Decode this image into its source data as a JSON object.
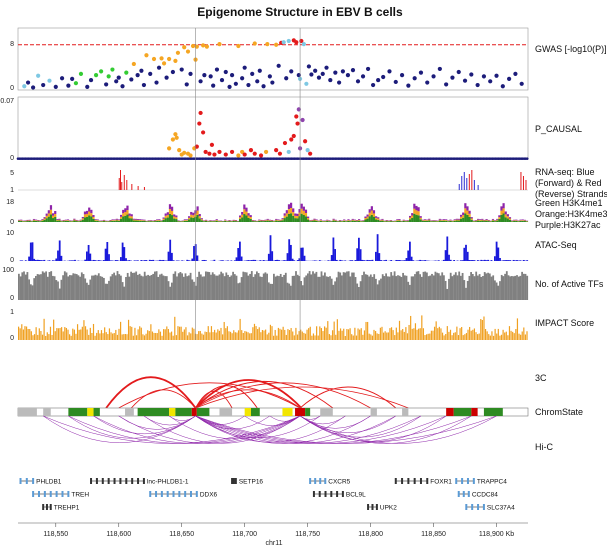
{
  "chart_data": {
    "type": "scatter",
    "title": "Epigenome Structure in EBV B cells",
    "xlabel": "chr11",
    "x_unit": "Kb",
    "xlim": [
      118520,
      118925
    ],
    "x_ticks": [
      "118,550",
      "118,600",
      "118,650",
      "118,700",
      "118,750",
      "118,800",
      "118,850",
      "118,900 Kb"
    ],
    "highlight_positions_kb": [
      118661,
      118744
    ],
    "tracks": {
      "gwas": {
        "label": "GWAS [-log10(P)]",
        "y_ticks": [
          "8",
          "0"
        ],
        "ylim": [
          0,
          10
        ],
        "threshold": 7.3,
        "points": [
          [
            118525,
            0.6,
            "#7ec8e3"
          ],
          [
            118528,
            1.2,
            "#1c1c7a"
          ],
          [
            118532,
            0.4,
            "#1c1c7a"
          ],
          [
            118536,
            2.3,
            "#7ec8e3"
          ],
          [
            118540,
            0.8,
            "#1c1c7a"
          ],
          [
            118545,
            1.5,
            "#7ec8e3"
          ],
          [
            118550,
            0.5,
            "#1c1c7a"
          ],
          [
            118555,
            1.9,
            "#1c1c7a"
          ],
          [
            118560,
            0.7,
            "#1c1c7a"
          ],
          [
            118563,
            1.8,
            "#1c1c7a"
          ],
          [
            118566,
            1.1,
            "#33cc33"
          ],
          [
            118570,
            2.6,
            "#33cc33"
          ],
          [
            118575,
            0.5,
            "#1c1c7a"
          ],
          [
            118578,
            1.6,
            "#1c1c7a"
          ],
          [
            118582,
            2.4,
            "#33cc33"
          ],
          [
            118586,
            3.0,
            "#33cc33"
          ],
          [
            118590,
            0.9,
            "#1c1c7a"
          ],
          [
            118592,
            2.2,
            "#33cc33"
          ],
          [
            118595,
            3.3,
            "#33cc33"
          ],
          [
            118598,
            1.4,
            "#1c1c7a"
          ],
          [
            118600,
            2.0,
            "#1c1c7a"
          ],
          [
            118603,
            0.6,
            "#1c1c7a"
          ],
          [
            118606,
            2.8,
            "#33cc33"
          ],
          [
            118610,
            1.7,
            "#1c1c7a"
          ],
          [
            118612,
            4.2,
            "#f5a623"
          ],
          [
            118615,
            2.4,
            "#1c1c7a"
          ],
          [
            118618,
            3.1,
            "#1c1c7a"
          ],
          [
            118620,
            0.8,
            "#1c1c7a"
          ],
          [
            118622,
            5.6,
            "#f5a623"
          ],
          [
            118625,
            2.6,
            "#1c1c7a"
          ],
          [
            118628,
            5.0,
            "#f5a623"
          ],
          [
            118630,
            1.2,
            "#1c1c7a"
          ],
          [
            118632,
            3.6,
            "#1c1c7a"
          ],
          [
            118634,
            5.1,
            "#f5a623"
          ],
          [
            118636,
            4.3,
            "#f5a623"
          ],
          [
            118638,
            2.0,
            "#1c1c7a"
          ],
          [
            118640,
            5.0,
            "#f5a623"
          ],
          [
            118643,
            2.9,
            "#1c1c7a"
          ],
          [
            118645,
            4.7,
            "#f5a623"
          ],
          [
            118647,
            6.0,
            "#f5a623"
          ],
          [
            118650,
            3.3,
            "#1c1c7a"
          ],
          [
            118652,
            6.9,
            "#f5a623"
          ],
          [
            118654,
            0.9,
            "#1c1c7a"
          ],
          [
            118655,
            6.2,
            "#f5a623"
          ],
          [
            118657,
            2.6,
            "#1c1c7a"
          ],
          [
            118659,
            7.1,
            "#f5a623"
          ],
          [
            118661,
            4.9,
            "#f5a623"
          ],
          [
            118662,
            7.0,
            "#f5a623"
          ],
          [
            118665,
            1.4,
            "#1c1c7a"
          ],
          [
            118667,
            7.2,
            "#f5a623"
          ],
          [
            118668,
            2.4,
            "#1c1c7a"
          ],
          [
            118670,
            7.0,
            "#f5a623"
          ],
          [
            118673,
            2.2,
            "#1c1c7a"
          ],
          [
            118675,
            0.7,
            "#1c1c7a"
          ],
          [
            118678,
            3.3,
            "#1c1c7a"
          ],
          [
            118680,
            7.4,
            "#f5a623"
          ],
          [
            118682,
            1.6,
            "#1c1c7a"
          ],
          [
            118685,
            2.9,
            "#1c1c7a"
          ],
          [
            118688,
            0.5,
            "#1c1c7a"
          ],
          [
            118690,
            2.4,
            "#1c1c7a"
          ],
          [
            118693,
            1.0,
            "#1c1c7a"
          ],
          [
            118695,
            7.1,
            "#f5a623"
          ],
          [
            118698,
            1.9,
            "#1c1c7a"
          ],
          [
            118700,
            3.6,
            "#1c1c7a"
          ],
          [
            118703,
            0.8,
            "#1c1c7a"
          ],
          [
            118706,
            2.6,
            "#1c1c7a"
          ],
          [
            118708,
            7.5,
            "#f5a623"
          ],
          [
            118710,
            1.4,
            "#1c1c7a"
          ],
          [
            118712,
            3.1,
            "#1c1c7a"
          ],
          [
            118715,
            0.6,
            "#1c1c7a"
          ],
          [
            118718,
            7.4,
            "#f5a623"
          ],
          [
            118720,
            2.2,
            "#1c1c7a"
          ],
          [
            118722,
            1.2,
            "#1c1c7a"
          ],
          [
            118725,
            7.3,
            "#f5a623"
          ],
          [
            118727,
            3.9,
            "#1c1c7a"
          ],
          [
            118729,
            7.6,
            "#e31a1c"
          ],
          [
            118731,
            7.7,
            "#7ec8e3"
          ],
          [
            118733,
            1.9,
            "#1c1c7a"
          ],
          [
            118735,
            7.9,
            "#7ec8e3"
          ],
          [
            118737,
            3.0,
            "#1c1c7a"
          ],
          [
            118739,
            8.0,
            "#e31a1c"
          ],
          [
            118741,
            7.7,
            "#e31a1c"
          ],
          [
            118743,
            2.4,
            "#1c1c7a"
          ],
          [
            118744,
            1.8,
            "#7ec8e3"
          ],
          [
            118745,
            7.9,
            "#e31a1c"
          ],
          [
            118747,
            7.4,
            "#7ec8e3"
          ],
          [
            118749,
            1.0,
            "#7ec8e3"
          ],
          [
            118751,
            3.8,
            "#1c1c7a"
          ],
          [
            118753,
            2.5,
            "#1c1c7a"
          ],
          [
            118756,
            3.1,
            "#1c1c7a"
          ],
          [
            118759,
            2.0,
            "#1c1c7a"
          ],
          [
            118762,
            2.6,
            "#1c1c7a"
          ],
          [
            118765,
            3.6,
            "#1c1c7a"
          ],
          [
            118768,
            1.6,
            "#1c1c7a"
          ],
          [
            118772,
            2.8,
            "#1c1c7a"
          ],
          [
            118775,
            1.2,
            "#1c1c7a"
          ],
          [
            118778,
            3.0,
            "#1c1c7a"
          ],
          [
            118782,
            2.4,
            "#1c1c7a"
          ],
          [
            118786,
            3.2,
            "#1c1c7a"
          ],
          [
            118790,
            1.4,
            "#1c1c7a"
          ],
          [
            118794,
            2.2,
            "#1c1c7a"
          ],
          [
            118798,
            3.4,
            "#1c1c7a"
          ],
          [
            118802,
            0.8,
            "#1c1c7a"
          ],
          [
            118806,
            1.6,
            "#1c1c7a"
          ],
          [
            118810,
            2.1,
            "#1c1c7a"
          ],
          [
            118815,
            3.0,
            "#1c1c7a"
          ],
          [
            118820,
            1.3,
            "#1c1c7a"
          ],
          [
            118825,
            2.4,
            "#1c1c7a"
          ],
          [
            118830,
            0.7,
            "#1c1c7a"
          ],
          [
            118835,
            1.9,
            "#1c1c7a"
          ],
          [
            118840,
            2.8,
            "#1c1c7a"
          ],
          [
            118845,
            1.2,
            "#1c1c7a"
          ],
          [
            118850,
            2.2,
            "#1c1c7a"
          ],
          [
            118855,
            3.4,
            "#1c1c7a"
          ],
          [
            118860,
            0.9,
            "#1c1c7a"
          ],
          [
            118865,
            2.0,
            "#1c1c7a"
          ],
          [
            118870,
            2.9,
            "#1c1c7a"
          ],
          [
            118875,
            1.5,
            "#1c1c7a"
          ],
          [
            118880,
            2.5,
            "#1c1c7a"
          ],
          [
            118885,
            0.8,
            "#1c1c7a"
          ],
          [
            118890,
            2.2,
            "#1c1c7a"
          ],
          [
            118895,
            1.4,
            "#1c1c7a"
          ],
          [
            118900,
            2.3,
            "#1c1c7a"
          ],
          [
            118905,
            0.6,
            "#1c1c7a"
          ],
          [
            118910,
            1.8,
            "#1c1c7a"
          ],
          [
            118915,
            2.6,
            "#1c1c7a"
          ],
          [
            118920,
            1.0,
            "#1c1c7a"
          ]
        ]
      },
      "pcausal": {
        "label": "P_CAUSAL",
        "y_ticks": [
          "0.07",
          "0"
        ],
        "ylim": [
          0,
          0.07
        ],
        "points": [
          [
            118640,
            0.012,
            "#f5a623"
          ],
          [
            118643,
            0.022,
            "#f5a623"
          ],
          [
            118645,
            0.028,
            "#f5a623"
          ],
          [
            118646,
            0.024,
            "#f5a623"
          ],
          [
            118648,
            0.01,
            "#f5a623"
          ],
          [
            118650,
            0.005,
            "#f5a623"
          ],
          [
            118652,
            0.007,
            "#f5a623"
          ],
          [
            118655,
            0.006,
            "#f5a623"
          ],
          [
            118657,
            0.004,
            "#f5a623"
          ],
          [
            118660,
            0.012,
            "#f5a623"
          ],
          [
            118662,
            0.014,
            "#e31a1c"
          ],
          [
            118664,
            0.04,
            "#e31a1c"
          ],
          [
            118665,
            0.052,
            "#e31a1c"
          ],
          [
            118667,
            0.03,
            "#e31a1c"
          ],
          [
            118669,
            0.008,
            "#e31a1c"
          ],
          [
            118672,
            0.006,
            "#e31a1c"
          ],
          [
            118674,
            0.016,
            "#e31a1c"
          ],
          [
            118676,
            0.005,
            "#e31a1c"
          ],
          [
            118680,
            0.008,
            "#e31a1c"
          ],
          [
            118685,
            0.005,
            "#e31a1c"
          ],
          [
            118690,
            0.008,
            "#e31a1c"
          ],
          [
            118695,
            0.004,
            "#f5a623"
          ],
          [
            118698,
            0.008,
            "#f5a623"
          ],
          [
            118700,
            0.005,
            "#e31a1c"
          ],
          [
            118705,
            0.01,
            "#e31a1c"
          ],
          [
            118708,
            0.006,
            "#e31a1c"
          ],
          [
            118713,
            0.004,
            "#e31a1c"
          ],
          [
            118717,
            0.008,
            "#f5a623"
          ],
          [
            118725,
            0.01,
            "#e31a1c"
          ],
          [
            118728,
            0.006,
            "#e31a1c"
          ],
          [
            118732,
            0.018,
            "#e31a1c"
          ],
          [
            118735,
            0.008,
            "#7ec8e3"
          ],
          [
            118737,
            0.022,
            "#e31a1c"
          ],
          [
            118739,
            0.026,
            "#e31a1c"
          ],
          [
            118741,
            0.048,
            "#e31a1c"
          ],
          [
            118742,
            0.04,
            "#e31a1c"
          ],
          [
            118743,
            0.056,
            "#8e44ad"
          ],
          [
            118744,
            0.012,
            "#8e44ad"
          ],
          [
            118746,
            0.044,
            "#8e44ad"
          ],
          [
            118748,
            0.02,
            "#e31a1c"
          ],
          [
            118750,
            0.01,
            "#7ec8e3"
          ],
          [
            118752,
            0.006,
            "#e31a1c"
          ]
        ]
      },
      "rnaseq": {
        "label_lines": [
          "RNA-seq: Blue",
          "(Forward) & Red",
          "(Reverse) Strands"
        ],
        "y_ticks": [
          "5",
          "1"
        ]
      },
      "chip": {
        "label_lines": [
          "Green H3K4me1",
          "Orange:H3K4me3",
          "Purple:H3K27ac"
        ],
        "y_ticks": [
          "18",
          "0"
        ]
      },
      "atac": {
        "label": "ATAC-Seq",
        "y_ticks": [
          "10",
          "0"
        ]
      },
      "tfs": {
        "label": "No. of Active TFs",
        "y_ticks": [
          "100",
          "0"
        ]
      },
      "impact": {
        "label": "IMPACT Score",
        "y_ticks": [
          "1",
          "0"
        ]
      },
      "threec": {
        "label": "3C"
      },
      "chromstate": {
        "label": "ChromState"
      },
      "hic": {
        "label": "Hi-C"
      }
    },
    "genes": [
      {
        "name": "PHLDB1",
        "start": 118522,
        "end": 118532,
        "strand": "+",
        "row": 0,
        "color": "#5b9bd5"
      },
      {
        "name": "lnc-PHLDB1-1",
        "start": 118578,
        "end": 118620,
        "strand": "-",
        "row": 0,
        "color": "#333333"
      },
      {
        "name": "SETP16",
        "start": 118690,
        "end": 118693,
        "strand": "-",
        "row": 0,
        "color": "#333333"
      },
      {
        "name": "CXCR5",
        "start": 118752,
        "end": 118764,
        "strand": "+",
        "row": 0,
        "color": "#5b9bd5"
      },
      {
        "name": "FOXR1",
        "start": 118820,
        "end": 118845,
        "strand": "+",
        "row": 0,
        "color": "#333333"
      },
      {
        "name": "TRAPPC4",
        "start": 118868,
        "end": 118882,
        "strand": "+",
        "row": 0,
        "color": "#5b9bd5"
      },
      {
        "name": "TREH",
        "start": 118532,
        "end": 118560,
        "strand": "-",
        "row": 1,
        "color": "#5b9bd5"
      },
      {
        "name": "DDX6",
        "start": 118625,
        "end": 118662,
        "strand": "-",
        "row": 1,
        "color": "#5b9bd5"
      },
      {
        "name": "BCL9L",
        "start": 118755,
        "end": 118778,
        "strand": "-",
        "row": 1,
        "color": "#333333"
      },
      {
        "name": "CCDC84",
        "start": 118870,
        "end": 118878,
        "strand": "+",
        "row": 1,
        "color": "#5b9bd5"
      },
      {
        "name": "TREHP1",
        "start": 118540,
        "end": 118546,
        "strand": "-",
        "row": 2,
        "color": "#333333"
      },
      {
        "name": "UPK2",
        "start": 118798,
        "end": 118805,
        "strand": "+",
        "row": 2,
        "color": "#333333"
      },
      {
        "name": "SLC37A4",
        "start": 118876,
        "end": 118890,
        "strand": "-",
        "row": 2,
        "color": "#5b9bd5"
      }
    ],
    "colors": {
      "threshold": "#e31a1c",
      "rna_forward": "#2b2bd1",
      "rna_reverse": "#e31a1c",
      "h3k4me1": "#2e8b22",
      "h3k4me3": "#f5a623",
      "h3k27ac": "#8e24aa",
      "atac": "#1a1adb",
      "tfs": "#808080",
      "impact": "#f0a020",
      "threec_arc": "#e31a1c",
      "hic_arc": "#8e24aa"
    }
  }
}
